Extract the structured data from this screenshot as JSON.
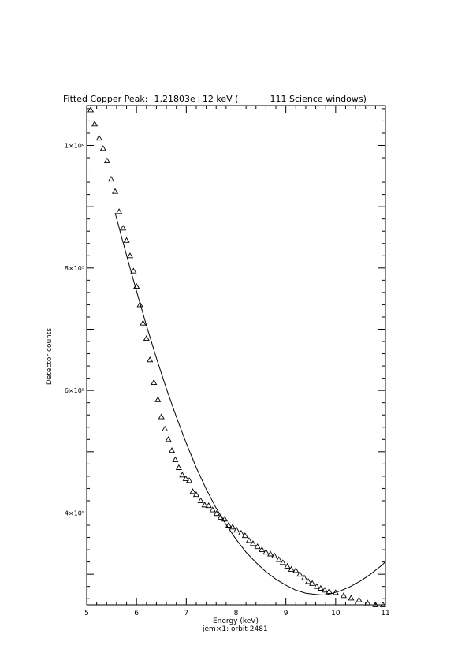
{
  "title": {
    "prefix": "Fitted Copper Peak:",
    "value": "1.21803e+12 keV (",
    "suffix": "111 Science windows)"
  },
  "xlabel": "Energy (keV)",
  "caption": "jem×1: orbit 2481",
  "ylabel": "Detector counts",
  "chart_data": {
    "type": "scatter",
    "xlim": [
      5,
      11
    ],
    "ylim": [
      250000,
      1065000
    ],
    "x_ticks": [
      5,
      6,
      7,
      8,
      9,
      10,
      11
    ],
    "x_tick_labels": [
      "5",
      "6",
      "7",
      "8",
      "9",
      "10",
      "11"
    ],
    "y_ticks": [
      400000,
      600000,
      800000,
      1000000
    ],
    "y_tick_labels": [
      "4×10⁵",
      "6×10⁵",
      "8×10⁵",
      "1×10⁶"
    ],
    "grid": false,
    "series": [
      {
        "kind": "points",
        "marker": "triangle",
        "x": [
          5.08,
          5.16,
          5.25,
          5.33,
          5.41,
          5.49,
          5.57,
          5.65,
          5.73,
          5.8,
          5.87,
          5.94,
          6.0,
          6.07,
          6.13,
          6.2,
          6.27,
          6.35,
          6.43,
          6.5,
          6.57,
          6.64,
          6.71,
          6.78,
          6.85,
          6.92,
          6.99,
          7.06,
          7.13,
          7.2,
          7.29,
          7.37,
          7.45,
          7.53,
          7.61,
          7.69,
          7.77,
          7.85,
          7.93,
          8.01,
          8.1,
          8.18,
          8.26,
          8.34,
          8.43,
          8.52,
          8.6,
          8.69,
          8.77,
          8.86,
          8.94,
          9.03,
          9.11,
          9.2,
          9.28,
          9.37,
          9.45,
          9.53,
          9.62,
          9.7,
          9.78,
          9.87,
          10.0,
          10.16,
          10.31,
          10.47,
          10.64,
          10.8,
          10.95
        ],
        "y": [
          1058000,
          1035000,
          1012000,
          995000,
          975000,
          945000,
          925000,
          892000,
          865000,
          845000,
          820000,
          795000,
          770000,
          740000,
          710000,
          685000,
          650000,
          613000,
          585000,
          557000,
          537000,
          520000,
          502000,
          487000,
          474000,
          462000,
          456000,
          453000,
          435000,
          430000,
          420000,
          413000,
          412000,
          405000,
          399000,
          393000,
          390000,
          380000,
          377000,
          372000,
          367000,
          363000,
          355000,
          350000,
          345000,
          340000,
          336000,
          333000,
          330000,
          324000,
          319000,
          313000,
          308000,
          306000,
          300000,
          294000,
          288000,
          285000,
          280000,
          277000,
          274000,
          272000,
          270000,
          265000,
          261000,
          258000,
          253000,
          250000,
          250000
        ]
      },
      {
        "kind": "fit",
        "x": [
          5.57,
          5.7,
          5.85,
          6.0,
          6.2,
          6.4,
          6.6,
          6.8,
          7.0,
          7.2,
          7.4,
          7.6,
          7.8,
          8.0,
          8.2,
          8.4,
          8.6,
          8.8,
          9.0,
          9.2,
          9.4,
          9.6,
          9.75,
          9.9,
          10.1,
          10.3,
          10.5,
          10.7,
          10.9,
          11.0
        ],
        "y": [
          890000,
          851000,
          806000,
          762000,
          706000,
          653000,
          603000,
          557000,
          514000,
          474000,
          439000,
          408000,
          381000,
          357000,
          336000,
          319000,
          304000,
          292000,
          282000,
          274000,
          269000,
          267000,
          266000,
          268000,
          273000,
          280000,
          289000,
          300000,
          313000,
          320000
        ]
      }
    ]
  }
}
